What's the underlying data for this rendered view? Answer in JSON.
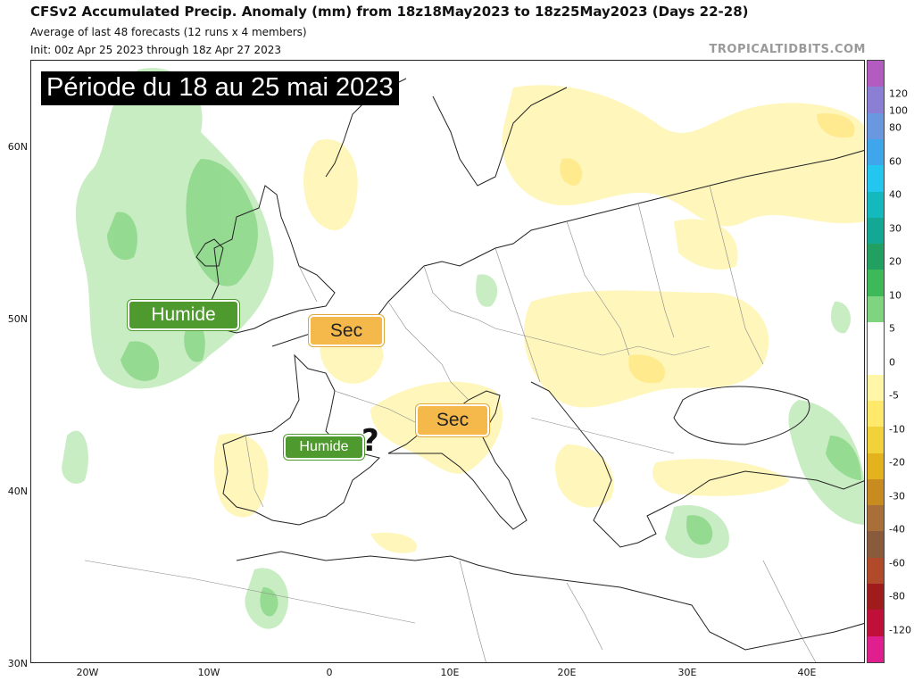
{
  "header": {
    "title": "CFSv2 Accumulated Precip. Anomaly (mm) from 18z18May2023 to 18z25May2023 (Days 22-28)",
    "subtitle1": "Average of last 48 forecasts (12 runs x 4 members)",
    "subtitle2": "Init: 00z Apr 25 2023 through 18z Apr 27 2023",
    "credit": "TROPICALTIDBITS.COM"
  },
  "map": {
    "latitude_labels": [
      "60N",
      "50N",
      "40N",
      "30N"
    ],
    "longitude_labels": [
      "20W",
      "10W",
      "0",
      "10E",
      "20E",
      "30E",
      "40E"
    ]
  },
  "annotations": {
    "period": "Période du 18 au 25 mai 2023",
    "humide_atlantic": "Humide",
    "sec_france": "Sec",
    "sec_italy": "Sec",
    "humide_spain": "Humide",
    "question_mark": "?"
  },
  "colorbar": {
    "labels": [
      "120",
      "100",
      "80",
      "60",
      "40",
      "30",
      "20",
      "10",
      "5",
      "0",
      "-5",
      "-10",
      "-20",
      "-30",
      "-40",
      "-60",
      "-80",
      "-120"
    ],
    "colors": [
      "#b35bc0",
      "#8a7fd4",
      "#6a98e0",
      "#3fa6ec",
      "#22c6ee",
      "#13b9bc",
      "#12a893",
      "#22a062",
      "#3eb95a",
      "#7fd57f",
      "#ffffff",
      "#ffffff",
      "#fff6a8",
      "#ffe96a",
      "#f2d23a",
      "#e4b21c",
      "#c88b20",
      "#a87038",
      "#8a5a3c",
      "#b04a2a",
      "#a01c1c",
      "#c0103a",
      "#e01e8e"
    ]
  }
}
